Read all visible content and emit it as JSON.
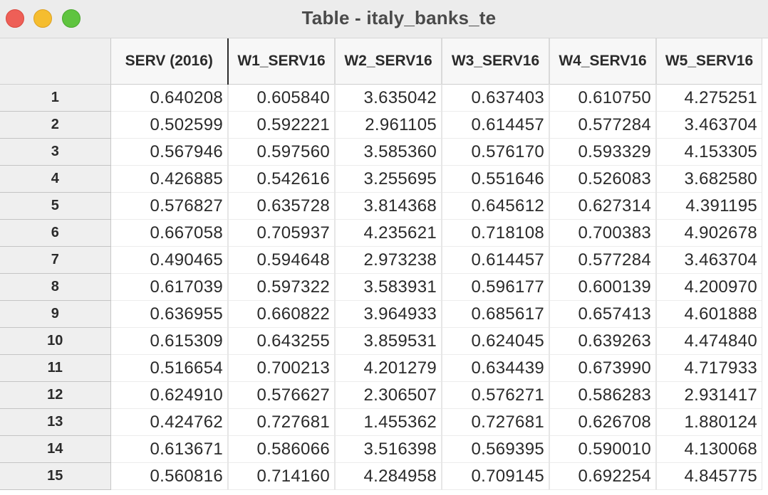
{
  "window": {
    "title": "Table - italy_banks_te"
  },
  "table": {
    "columns": [
      "SERV (2016)",
      "W1_SERV16",
      "W2_SERV16",
      "W3_SERV16",
      "W4_SERV16",
      "W5_SERV16"
    ],
    "rows": [
      {
        "label": "1",
        "cells": [
          "0.640208",
          "0.605840",
          "3.635042",
          "0.637403",
          "0.610750",
          "4.275251"
        ]
      },
      {
        "label": "2",
        "cells": [
          "0.502599",
          "0.592221",
          "2.961105",
          "0.614457",
          "0.577284",
          "3.463704"
        ]
      },
      {
        "label": "3",
        "cells": [
          "0.567946",
          "0.597560",
          "3.585360",
          "0.576170",
          "0.593329",
          "4.153305"
        ]
      },
      {
        "label": "4",
        "cells": [
          "0.426885",
          "0.542616",
          "3.255695",
          "0.551646",
          "0.526083",
          "3.682580"
        ]
      },
      {
        "label": "5",
        "cells": [
          "0.576827",
          "0.635728",
          "3.814368",
          "0.645612",
          "0.627314",
          "4.391195"
        ]
      },
      {
        "label": "6",
        "cells": [
          "0.667058",
          "0.705937",
          "4.235621",
          "0.718108",
          "0.700383",
          "4.902678"
        ]
      },
      {
        "label": "7",
        "cells": [
          "0.490465",
          "0.594648",
          "2.973238",
          "0.614457",
          "0.577284",
          "3.463704"
        ]
      },
      {
        "label": "8",
        "cells": [
          "0.617039",
          "0.597322",
          "3.583931",
          "0.596177",
          "0.600139",
          "4.200970"
        ]
      },
      {
        "label": "9",
        "cells": [
          "0.636955",
          "0.660822",
          "3.964933",
          "0.685617",
          "0.657413",
          "4.601888"
        ]
      },
      {
        "label": "10",
        "cells": [
          "0.615309",
          "0.643255",
          "3.859531",
          "0.624045",
          "0.639263",
          "4.474840"
        ]
      },
      {
        "label": "11",
        "cells": [
          "0.516654",
          "0.700213",
          "4.201279",
          "0.634439",
          "0.673990",
          "4.717933"
        ]
      },
      {
        "label": "12",
        "cells": [
          "0.624910",
          "0.576627",
          "2.306507",
          "0.576271",
          "0.586283",
          "2.931417"
        ]
      },
      {
        "label": "13",
        "cells": [
          "0.424762",
          "0.727681",
          "1.455362",
          "0.727681",
          "0.626708",
          "1.880124"
        ]
      },
      {
        "label": "14",
        "cells": [
          "0.613671",
          "0.586066",
          "3.516398",
          "0.569395",
          "0.590010",
          "4.130068"
        ]
      },
      {
        "label": "15",
        "cells": [
          "0.560816",
          "0.714160",
          "4.284958",
          "0.709145",
          "0.692254",
          "4.845775"
        ]
      }
    ]
  }
}
